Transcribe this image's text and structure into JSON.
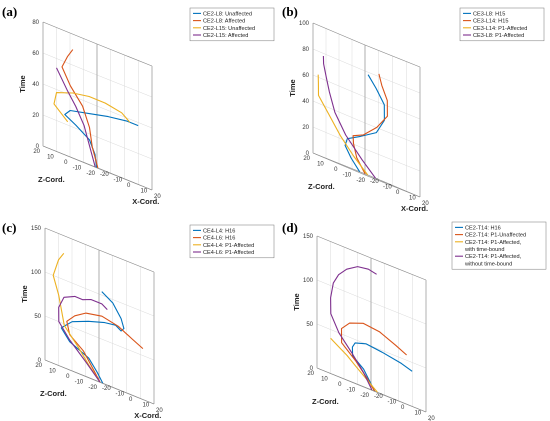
{
  "colors": [
    "#0072BD",
    "#D95319",
    "#EDB120",
    "#7E2F8E"
  ],
  "chart_data": [
    {
      "panel_label": "(a)",
      "type": "line",
      "zlabel": "Time",
      "xlabel": "X-Cord.",
      "ylabel": "Z-Cord.",
      "zticks": [
        "0",
        "20",
        "40",
        "60",
        "80"
      ],
      "xticks": [
        "-20",
        "-10",
        "0",
        "10",
        "20"
      ],
      "yticks": [
        "-20",
        "-10",
        "0",
        "10",
        "20"
      ],
      "legend_position": "top-right",
      "series": [
        {
          "name": "CE2-L8: Unaffected",
          "color": "#0072BD",
          "points": [
            [
              -15,
              -14,
              0
            ],
            [
              -10,
              -8,
              8
            ],
            [
              -8,
              -2,
              16
            ],
            [
              -10,
              6,
              22
            ],
            [
              -12,
              12,
              26
            ],
            [
              -6,
              14,
              30
            ],
            [
              6,
              12,
              33
            ],
            [
              14,
              6,
              36
            ],
            [
              20,
              -2,
              38
            ],
            [
              22,
              -8,
              38
            ]
          ]
        },
        {
          "name": "CE2-L8: Affected",
          "color": "#D95319",
          "points": [
            [
              -16,
              -16,
              0
            ],
            [
              -14,
              -10,
              12
            ],
            [
              -10,
              -4,
              24
            ],
            [
              -9,
              2,
              36
            ],
            [
              -12,
              8,
              46
            ],
            [
              -12,
              14,
              56
            ],
            [
              -6,
              16,
              64
            ],
            [
              0,
              18,
              70
            ]
          ]
        },
        {
          "name": "CE2-L15: Unaffected",
          "color": "#EDB120",
          "points": [
            [
              -16,
              6,
              22
            ],
            [
              -18,
              14,
              30
            ],
            [
              -12,
              18,
              38
            ],
            [
              -2,
              16,
              42
            ],
            [
              8,
              14,
              44
            ],
            [
              16,
              10,
              44
            ],
            [
              22,
              4,
              42
            ],
            [
              22,
              -2,
              38
            ]
          ]
        },
        {
          "name": "CE2-L15: Affected",
          "color": "#7E2F8E",
          "points": [
            [
              -16,
              -14,
              0
            ],
            [
              -14,
              -8,
              12
            ],
            [
              -12,
              -2,
              24
            ],
            [
              -12,
              4,
              34
            ],
            [
              -12,
              10,
              42
            ],
            [
              -12,
              14,
              48
            ],
            [
              -12,
              18,
              54
            ]
          ]
        }
      ]
    },
    {
      "panel_label": "(b)",
      "type": "line",
      "zlabel": "Time",
      "xlabel": "X-Cord.",
      "ylabel": "Z-Cord.",
      "zticks": [
        "0",
        "20",
        "40",
        "60",
        "80",
        "100"
      ],
      "xticks": [
        "-20",
        "-10",
        "0",
        "10",
        "20"
      ],
      "yticks": [
        "-20",
        "-10",
        "0",
        "10",
        "20"
      ],
      "legend_position": "top-right",
      "series": [
        {
          "name": "CE3-L8: H15",
          "color": "#0072BD",
          "points": [
            [
              -18,
              -12,
              0
            ],
            [
              -14,
              -2,
              8
            ],
            [
              -8,
              8,
              16
            ],
            [
              0,
              14,
              22
            ],
            [
              8,
              12,
              28
            ],
            [
              14,
              6,
              36
            ],
            [
              18,
              4,
              48
            ],
            [
              20,
              6,
              60
            ],
            [
              18,
              10,
              70
            ],
            [
              16,
              14,
              78
            ]
          ]
        },
        {
          "name": "CE3-L14: H15",
          "color": "#D95319",
          "points": [
            [
              -18,
              -16,
              0
            ],
            [
              -16,
              -8,
              10
            ],
            [
              -10,
              0,
              20
            ],
            [
              -4,
              6,
              26
            ],
            [
              4,
              6,
              30
            ],
            [
              10,
              2,
              40
            ],
            [
              14,
              -2,
              52
            ],
            [
              16,
              0,
              64
            ],
            [
              16,
              4,
              74
            ],
            [
              18,
              8,
              82
            ]
          ]
        },
        {
          "name": "CE3-L14: P1-Affected",
          "color": "#EDB120",
          "points": [
            [
              -16,
              -16,
              0
            ],
            [
              -16,
              -6,
              10
            ],
            [
              -16,
              4,
              22
            ],
            [
              -18,
              10,
              34
            ],
            [
              -20,
              16,
              46
            ],
            [
              -18,
              18,
              56
            ],
            [
              -16,
              20,
              62
            ]
          ]
        },
        {
          "name": "CE3-L8: P1-Affected",
          "color": "#7E2F8E",
          "points": [
            [
              -12,
              -18,
              0
            ],
            [
              -14,
              -10,
              10
            ],
            [
              -16,
              0,
              24
            ],
            [
              -18,
              6,
              38
            ],
            [
              -18,
              10,
              52
            ],
            [
              -16,
              14,
              62
            ],
            [
              -14,
              18,
              72
            ],
            [
              -12,
              20,
              78
            ]
          ]
        }
      ]
    },
    {
      "panel_label": "(c)",
      "type": "line",
      "zlabel": "Time",
      "xlabel": "X-Cord.",
      "ylabel": "Z-Cord.",
      "zticks": [
        "0",
        "50",
        "100",
        "150"
      ],
      "xticks": [
        "-20",
        "-10",
        "0",
        "10",
        "20"
      ],
      "yticks": [
        "-20",
        "-10",
        "0",
        "10",
        "20"
      ],
      "legend_position": "top-right",
      "series": [
        {
          "name": "CE4-L4: H16",
          "color": "#0072BD",
          "points": [
            [
              -16,
              -18,
              0
            ],
            [
              -14,
              -12,
              10
            ],
            [
              -12,
              -4,
              22
            ],
            [
              -16,
              6,
              32
            ],
            [
              -14,
              14,
              44
            ],
            [
              -4,
              16,
              56
            ],
            [
              6,
              14,
              64
            ],
            [
              14,
              10,
              70
            ],
            [
              18,
              6,
              72
            ],
            [
              16,
              0,
              68
            ],
            [
              12,
              -6,
              72
            ],
            [
              18,
              2,
              82
            ],
            [
              20,
              10,
              96
            ],
            [
              16,
              14,
              104
            ]
          ]
        },
        {
          "name": "CE4-L6: H16",
          "color": "#D95319",
          "points": [
            [
              -18,
              -18,
              0
            ],
            [
              -16,
              -10,
              14
            ],
            [
              -14,
              -2,
              28
            ],
            [
              -16,
              6,
              40
            ],
            [
              -12,
              12,
              54
            ],
            [
              -4,
              14,
              64
            ],
            [
              4,
              14,
              72
            ],
            [
              12,
              10,
              76
            ],
            [
              18,
              4,
              72
            ],
            [
              20,
              -4,
              64
            ],
            [
              22,
              -10,
              58
            ]
          ]
        },
        {
          "name": "CE4-L4: P1-Affected",
          "color": "#EDB120",
          "points": [
            [
              -18,
              -18,
              0
            ],
            [
              -18,
              -10,
              14
            ],
            [
              -18,
              -2,
              30
            ],
            [
              -20,
              6,
              48
            ],
            [
              -18,
              10,
              64
            ],
            [
              -16,
              14,
              80
            ],
            [
              -18,
              16,
              100
            ],
            [
              -10,
              20,
              120
            ],
            [
              -4,
              22,
              130
            ]
          ]
        },
        {
          "name": "CE4-L6: P1-Affected",
          "color": "#7E2F8E",
          "points": [
            [
              -16,
              -16,
              0
            ],
            [
              -16,
              -6,
              16
            ],
            [
              -18,
              4,
              34
            ],
            [
              -20,
              10,
              50
            ],
            [
              -16,
              14,
              66
            ],
            [
              -8,
              18,
              80
            ],
            [
              0,
              18,
              86
            ],
            [
              6,
              18,
              86
            ],
            [
              12,
              18,
              90
            ],
            [
              18,
              16,
              90
            ],
            [
              20,
              14,
              86
            ]
          ]
        }
      ]
    },
    {
      "panel_label": "(d)",
      "type": "line",
      "zlabel": "Time",
      "xlabel": "X-Cord.",
      "ylabel": "Z-Cord.",
      "zticks": [
        "0",
        "50",
        "100",
        "150"
      ],
      "xticks": [
        "-20",
        "-10",
        "0",
        "10",
        "20"
      ],
      "yticks": [
        "-20",
        "-10",
        "0",
        "10",
        "20"
      ],
      "legend_position": "top-right",
      "series": [
        {
          "name": "CE2-T14: H16",
          "color": "#0072BD",
          "points": [
            [
              -16,
              -18,
              0
            ],
            [
              -14,
              -12,
              10
            ],
            [
              -12,
              -6,
              20
            ],
            [
              -14,
              0,
              30
            ],
            [
              -8,
              6,
              40
            ],
            [
              -2,
              10,
              46
            ],
            [
              6,
              10,
              50
            ],
            [
              14,
              6,
              48
            ],
            [
              20,
              -2,
              44
            ],
            [
              22,
              -8,
              40
            ]
          ]
        },
        {
          "name": "CE2-T14: P1-Unaffected",
          "color": "#D95319",
          "points": [
            [
              -16,
              -18,
              0
            ],
            [
              -14,
              -10,
              12
            ],
            [
              -14,
              -2,
              26
            ],
            [
              -16,
              6,
              40
            ],
            [
              -10,
              12,
              56
            ],
            [
              -2,
              14,
              66
            ],
            [
              8,
              14,
              72
            ],
            [
              16,
              10,
              70
            ],
            [
              22,
              4,
              62
            ],
            [
              24,
              -2,
              56
            ]
          ]
        },
        {
          "name": "CE2-T14: P1-Affected,\nwith time-bound",
          "color": "#EDB120",
          "points": [
            [
              -14,
              -18,
              0
            ],
            [
              -14,
              -10,
              10
            ],
            [
              -14,
              -2,
              20
            ],
            [
              -12,
              6,
              28
            ],
            [
              -12,
              12,
              34
            ],
            [
              -14,
              16,
              40
            ]
          ]
        },
        {
          "name": "CE2-T14: P1-Affected,\nwithout time-bound",
          "color": "#7E2F8E",
          "points": [
            [
              -16,
              -16,
              0
            ],
            [
              -14,
              -8,
              16
            ],
            [
              -14,
              0,
              32
            ],
            [
              -18,
              6,
              50
            ],
            [
              -20,
              10,
              68
            ],
            [
              -16,
              14,
              86
            ],
            [
              -10,
              18,
              104
            ],
            [
              -4,
              20,
              116
            ],
            [
              2,
              20,
              126
            ],
            [
              8,
              18,
              134
            ],
            [
              14,
              16,
              136
            ],
            [
              18,
              14,
              134
            ]
          ]
        }
      ]
    }
  ]
}
